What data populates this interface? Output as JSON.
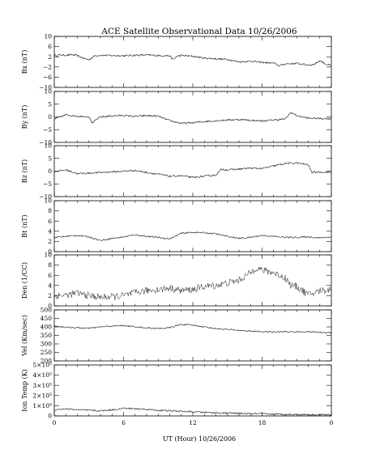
{
  "chart_data": {
    "title": "ACE Satellite Observational Data   10/26/2006",
    "xlabel": "UT (Hour)   10/26/2006",
    "x_ticks": [
      "0",
      "6",
      "12",
      "18",
      "0"
    ],
    "xlim": [
      0,
      24
    ],
    "panels": [
      {
        "type": "line",
        "ylabel": "Bx (nT)",
        "ylim": [
          -10,
          10
        ],
        "yticks": [
          "10",
          "6",
          "2",
          "−2",
          "−6",
          "−10"
        ],
        "ytick_values": [
          10,
          6,
          2,
          -2,
          -6,
          -10
        ],
        "noise": 0.35,
        "x": [
          0,
          0.5,
          1.0,
          1.5,
          2.0,
          2.5,
          3.0,
          3.5,
          4.0,
          5.0,
          6.0,
          7.0,
          8.0,
          9.0,
          10.0,
          10.3,
          10.6,
          11.0,
          12.0,
          13.0,
          14.0,
          15.0,
          16.0,
          17.0,
          18.0,
          19.0,
          19.5,
          20.0,
          21.0,
          22.0,
          22.5,
          23.0,
          23.5,
          24.0
        ],
        "values": [
          2.5,
          2.7,
          2.6,
          2.8,
          2.5,
          1.5,
          0.8,
          2.4,
          2.6,
          2.5,
          2.4,
          2.6,
          2.7,
          2.5,
          2.4,
          0.8,
          2.2,
          2.5,
          2.2,
          1.5,
          1.2,
          1.0,
          0.0,
          0.3,
          -0.2,
          -0.5,
          -1.5,
          -0.8,
          -0.6,
          -1.2,
          -1.0,
          0.5,
          -0.8,
          -1.5
        ]
      },
      {
        "type": "line",
        "ylabel": "By (nT)",
        "ylim": [
          -10,
          10
        ],
        "yticks": [
          "10",
          "5",
          "0",
          "−5",
          "−10"
        ],
        "ytick_values": [
          10,
          5,
          0,
          -5,
          -10
        ],
        "noise": 0.35,
        "x": [
          0,
          1.0,
          2.0,
          3.0,
          3.3,
          3.6,
          4.0,
          5.0,
          6.0,
          7.0,
          8.0,
          9.0,
          10.0,
          11.0,
          12.0,
          13.0,
          14.0,
          15.0,
          16.0,
          17.0,
          18.0,
          19.0,
          20.0,
          20.5,
          21.0,
          22.0,
          23.0,
          24.0
        ],
        "values": [
          -0.8,
          0.8,
          0.3,
          0.1,
          -2.5,
          -1.2,
          0.0,
          0.4,
          0.6,
          0.2,
          0.5,
          0.3,
          -1.5,
          -2.5,
          -2.3,
          -1.8,
          -1.5,
          -1.2,
          -1.0,
          -1.3,
          -1.6,
          -1.2,
          -0.8,
          1.8,
          0.5,
          -0.5,
          -0.6,
          -0.7
        ]
      },
      {
        "type": "line",
        "ylabel": "Bz (nT)",
        "ylim": [
          -10,
          10
        ],
        "yticks": [
          "10",
          "5",
          "0",
          "−5",
          "−10"
        ],
        "ytick_values": [
          10,
          5,
          0,
          -5,
          -10
        ],
        "noise": 0.35,
        "x": [
          0,
          1.0,
          2.0,
          3.0,
          4.0,
          5.0,
          6.0,
          7.0,
          8.0,
          9.0,
          10.0,
          11.0,
          12.0,
          13.0,
          14.0,
          14.5,
          15.0,
          16.0,
          17.0,
          18.0,
          19.0,
          20.0,
          21.0,
          22.0,
          22.3,
          23.0,
          24.0
        ],
        "values": [
          -0.2,
          0.5,
          -1.0,
          -0.8,
          -0.5,
          -0.3,
          0.0,
          0.3,
          -0.5,
          -1.2,
          -2.0,
          -1.8,
          -2.5,
          -2.0,
          -1.5,
          0.8,
          0.5,
          0.8,
          1.2,
          1.0,
          2.0,
          3.0,
          3.2,
          2.5,
          -0.5,
          -0.3,
          -0.5
        ]
      },
      {
        "type": "line",
        "ylabel": "Bt (nT)",
        "ylim": [
          0,
          10
        ],
        "yticks": [
          "10",
          "8",
          "6",
          "4",
          "2",
          "0"
        ],
        "ytick_values": [
          10,
          8,
          6,
          4,
          2,
          0
        ],
        "noise": 0.15,
        "x": [
          0,
          1.0,
          2.0,
          3.0,
          4.0,
          5.0,
          6.0,
          7.0,
          8.0,
          9.0,
          10.0,
          11.0,
          12.0,
          13.0,
          14.0,
          15.0,
          16.0,
          17.0,
          18.0,
          19.0,
          20.0,
          21.0,
          22.0,
          23.0,
          24.0
        ],
        "values": [
          2.8,
          3.0,
          3.2,
          2.9,
          2.2,
          2.6,
          2.9,
          3.3,
          3.0,
          2.8,
          2.5,
          3.6,
          3.8,
          3.7,
          3.5,
          3.0,
          2.6,
          2.8,
          3.2,
          3.0,
          2.8,
          2.8,
          2.9,
          2.7,
          2.9
        ]
      },
      {
        "type": "line",
        "ylabel": "Den (1/CC)",
        "ylim": [
          0,
          10
        ],
        "yticks": [
          "10",
          "8",
          "6",
          "4",
          "2",
          "0"
        ],
        "ytick_values": [
          10,
          8,
          6,
          4,
          2,
          0
        ],
        "noise": 0.7,
        "x": [
          0,
          1.0,
          2.0,
          3.0,
          4.0,
          5.0,
          6.0,
          7.0,
          8.0,
          9.0,
          10.0,
          11.0,
          12.0,
          13.0,
          14.0,
          15.0,
          16.0,
          17.0,
          17.5,
          18.0,
          19.0,
          20.0,
          20.5,
          21.0,
          22.0,
          22.5,
          23.0,
          24.0
        ],
        "values": [
          2.0,
          2.1,
          2.5,
          2.0,
          1.7,
          1.8,
          2.0,
          2.6,
          3.0,
          3.2,
          3.5,
          3.0,
          3.2,
          3.8,
          4.0,
          4.5,
          5.0,
          6.5,
          7.5,
          7.0,
          6.5,
          5.5,
          4.0,
          3.8,
          2.2,
          2.5,
          3.0,
          3.2
        ]
      },
      {
        "type": "line",
        "ylabel": "Vel (Km/sec)",
        "ylim": [
          200,
          500
        ],
        "yticks": [
          "500",
          "450",
          "400",
          "350",
          "300",
          "250",
          "200"
        ],
        "ytick_values": [
          500,
          450,
          400,
          350,
          300,
          250,
          200
        ],
        "noise": 4,
        "x": [
          0,
          1.0,
          2.0,
          3.0,
          4.0,
          5.0,
          6.0,
          7.0,
          8.0,
          9.0,
          10.0,
          11.0,
          12.0,
          13.0,
          14.0,
          15.0,
          16.0,
          17.0,
          18.0,
          19.0,
          20.0,
          21.0,
          22.0,
          23.0,
          24.0
        ],
        "values": [
          405,
          398,
          395,
          392,
          400,
          405,
          408,
          400,
          395,
          390,
          395,
          415,
          410,
          400,
          390,
          385,
          380,
          375,
          372,
          370,
          372,
          370,
          372,
          368,
          365
        ]
      },
      {
        "type": "line",
        "ylabel": "Ion Temp (K)",
        "ylim": [
          0,
          500000
        ],
        "yticks": [
          "5×10⁵",
          "4×10⁵",
          "3×10⁵",
          "2×10⁵",
          "1×10⁵",
          "0"
        ],
        "ytick_values": [
          500000,
          400000,
          300000,
          200000,
          100000,
          0
        ],
        "noise": 8000,
        "x": [
          0,
          1.0,
          2.0,
          3.0,
          4.0,
          5.0,
          6.0,
          7.0,
          8.0,
          9.0,
          10.0,
          11.0,
          12.0,
          13.0,
          14.0,
          15.0,
          16.0,
          17.0,
          18.0,
          19.0,
          20.0,
          21.0,
          22.0,
          23.0,
          24.0
        ],
        "values": [
          60000,
          70000,
          60000,
          55000,
          50000,
          60000,
          75000,
          70000,
          65000,
          55000,
          50000,
          45000,
          40000,
          35000,
          30000,
          28000,
          25000,
          22000,
          20000,
          18000,
          15000,
          14000,
          13000,
          12000,
          12000
        ]
      }
    ]
  }
}
